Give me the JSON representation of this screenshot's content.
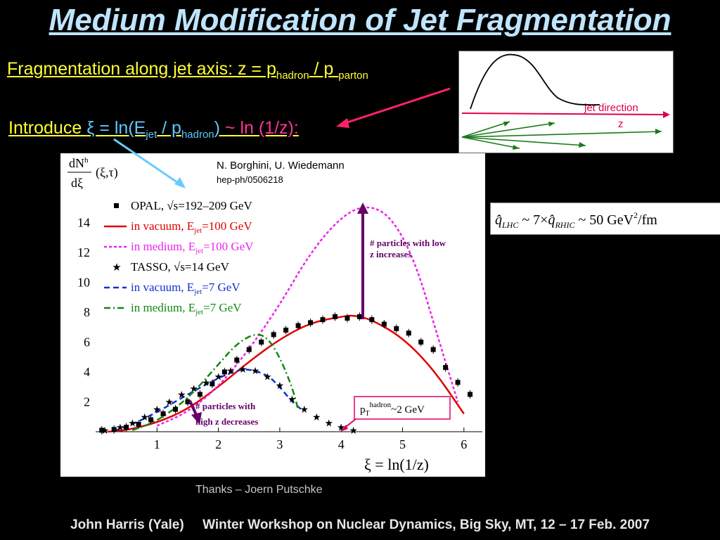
{
  "title": "Medium Modification of Jet Fragmentation",
  "fragmentation": {
    "prefix": "Fragmentation along jet axis: z = p",
    "sub1": "hadron",
    "mid": " / p ",
    "sub2": "parton"
  },
  "introduce": {
    "word": "Introduce ",
    "xi_part": "ξ = ln(E",
    "sub1": "jet",
    "mid": " / p",
    "sub2": "hadron",
    "close": ")",
    "tail": " ~ ln (1/z):"
  },
  "sketch": {
    "jet_direction": "jet direction",
    "z_label": "z"
  },
  "formula": {
    "q_lhc": "q̂",
    "lhc_sub": "LHC",
    "mid": " ~ 7×",
    "q_rhic": "q̂",
    "rhic_sub": "RHIC",
    "rest": " ~ 50 GeV",
    "sup": "2",
    "unit": "/fm"
  },
  "plot": {
    "authors": "N. Borghini, U. Wiedemann",
    "reference": "hep-ph/0506218",
    "ylabel_num": "dN",
    "ylabel_num_sup": "h",
    "ylabel_den": "dξ",
    "ylabel_args": "(ξ,τ)",
    "xlabel": "ξ = ln(1/z)",
    "legend": [
      {
        "label": "OPAL, √s=192–209 GeV",
        "color": "#000000",
        "style": "square"
      },
      {
        "label": "in vacuum, E_jet=100 GeV",
        "color": "#e00000",
        "style": "solid"
      },
      {
        "label": "in medium, E_jet=100 GeV",
        "color": "#ee22ee",
        "style": "dotted"
      },
      {
        "label": "TASSO, √s=14 GeV",
        "color": "#000000",
        "style": "star"
      },
      {
        "label": "in vacuum, E_jet=7 GeV",
        "color": "#1133cc",
        "style": "dashed"
      },
      {
        "label": "in medium, E_jet=7 GeV",
        "color": "#118811",
        "style": "dashdot"
      }
    ],
    "annotation_low_z": [
      "# particles with low",
      "z increases"
    ],
    "annotation_high_z": [
      "# particles with",
      "high z decreases"
    ],
    "pt_box": {
      "prefix": "p",
      "sub": "T",
      "sup": "hadron",
      "rest": "~2 GeV"
    }
  },
  "chart_data": {
    "type": "scatter",
    "x_range": [
      0,
      6.3
    ],
    "y_range": [
      0,
      16
    ],
    "x_ticks": [
      1,
      2,
      3,
      4,
      5,
      6
    ],
    "y_ticks": [
      2,
      4,
      6,
      8,
      10,
      12,
      14
    ],
    "series": [
      {
        "name": "OPAL, √s=192–209 GeV",
        "kind": "points",
        "marker": "square",
        "x": [
          0.1,
          0.3,
          0.5,
          0.7,
          0.9,
          1.1,
          1.3,
          1.5,
          1.7,
          1.9,
          2.1,
          2.3,
          2.5,
          2.7,
          2.9,
          3.1,
          3.3,
          3.5,
          3.7,
          3.9,
          4.1,
          4.3,
          4.5,
          4.7,
          4.9,
          5.1,
          5.3,
          5.5,
          5.7,
          5.9,
          6.1
        ],
        "y": [
          0.1,
          0.15,
          0.3,
          0.5,
          0.8,
          1.2,
          1.5,
          2.0,
          2.5,
          3.2,
          4.0,
          4.8,
          5.5,
          6.0,
          6.5,
          6.8,
          7.1,
          7.3,
          7.5,
          7.7,
          7.6,
          7.7,
          7.5,
          7.2,
          6.9,
          6.6,
          6.0,
          5.5,
          4.3,
          3.3,
          2.5
        ]
      },
      {
        "name": "TASSO, √s=14 GeV",
        "kind": "points",
        "marker": "star",
        "x": [
          0.15,
          0.4,
          0.6,
          0.8,
          1.0,
          1.2,
          1.4,
          1.6,
          1.8,
          2.0,
          2.2,
          2.4,
          2.6,
          2.8,
          3.0,
          3.2,
          3.4,
          3.6,
          3.8,
          4.0,
          4.2
        ],
        "y": [
          0.1,
          0.3,
          0.6,
          1.0,
          1.5,
          2.0,
          2.5,
          2.9,
          3.3,
          3.7,
          4.1,
          4.2,
          4.1,
          3.7,
          3.1,
          2.2,
          1.5,
          1.0,
          0.6,
          0.3,
          0.1
        ]
      },
      {
        "name": "in vacuum, E_jet=100 GeV",
        "kind": "line",
        "color": "#e00000",
        "dash": "",
        "x": [
          0.2,
          0.5,
          1.0,
          1.5,
          2.0,
          2.5,
          3.0,
          3.5,
          4.0,
          4.2,
          4.5,
          5.0,
          5.5,
          6.0
        ],
        "y": [
          0.0,
          0.1,
          0.6,
          1.5,
          3.0,
          4.7,
          6.2,
          7.3,
          7.7,
          7.8,
          7.5,
          6.3,
          4.2,
          1.2
        ]
      },
      {
        "name": "in medium, E_jet=100 GeV",
        "kind": "line",
        "color": "#ee22ee",
        "dash": "4,3",
        "x": [
          1.0,
          1.5,
          2.0,
          2.5,
          3.0,
          3.5,
          4.0,
          4.4,
          4.8,
          5.2,
          5.6,
          5.9
        ],
        "y": [
          0.4,
          1.3,
          3.0,
          5.5,
          8.5,
          12.0,
          14.4,
          15.2,
          14.5,
          11.5,
          6.0,
          2.0
        ]
      },
      {
        "name": "in vacuum, E_jet=7 GeV",
        "kind": "line",
        "color": "#1133cc",
        "dash": "8,5",
        "x": [
          0.3,
          0.6,
          1.0,
          1.5,
          2.0,
          2.3,
          2.5,
          2.8,
          3.0,
          3.2,
          3.35
        ],
        "y": [
          0.05,
          0.5,
          1.3,
          2.5,
          3.6,
          4.1,
          4.2,
          3.8,
          3.0,
          2.0,
          1.5
        ]
      },
      {
        "name": "in medium, E_jet=7 GeV",
        "kind": "line",
        "color": "#118811",
        "dash": "9,4,2,4",
        "x": [
          0.6,
          1.0,
          1.5,
          2.0,
          2.3,
          2.6,
          2.8,
          3.0,
          3.2,
          3.3
        ],
        "y": [
          0.1,
          0.7,
          2.2,
          4.5,
          5.9,
          6.6,
          6.3,
          5.0,
          3.0,
          1.5
        ]
      }
    ]
  },
  "thanks": "Thanks – Joern Putschke",
  "footer": {
    "author": "John Harris (Yale)",
    "event": "Winter Workshop on Nuclear Dynamics, Big Sky, MT, 12 – 17 Feb. 2007"
  },
  "colors": {
    "title": "#bfe4ff",
    "highlight": "#ffff33",
    "arrow_pink": "#ff2266",
    "arrow_cyan": "#66ccff",
    "arrow_purple": "#660066"
  }
}
